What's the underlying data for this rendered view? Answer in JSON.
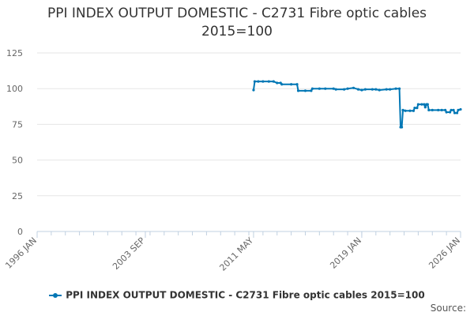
{
  "chart_data": {
    "type": "line",
    "title": [
      "PPI INDEX OUTPUT DOMESTIC - C2731 Fibre optic cables",
      "2015=100"
    ],
    "xlabel": "",
    "ylabel": "",
    "xlim": [
      "1996-01",
      "2026-01"
    ],
    "ylim": [
      0,
      125
    ],
    "x_ticks": [
      {
        "date": "1996-01",
        "label": "1996 JAN"
      },
      {
        "date": "2003-09",
        "label": "2003 SEP"
      },
      {
        "date": "2011-05",
        "label": "2011 MAY"
      },
      {
        "date": "2019-01",
        "label": "2019 JAN"
      },
      {
        "date": "2026-01",
        "label": "2026 JAN"
      }
    ],
    "y_ticks": [
      0,
      25,
      50,
      75,
      100,
      125
    ],
    "grid": "horizontal",
    "legend_position": "bottom-center",
    "color": "#0077b5",
    "series": [
      {
        "name": "PPI INDEX OUTPUT DOMESTIC - C2731 Fibre optic cables 2015=100",
        "points": [
          [
            "2011-05",
            99
          ],
          [
            "2011-06",
            105
          ],
          [
            "2011-09",
            105
          ],
          [
            "2012-01",
            105
          ],
          [
            "2012-06",
            105
          ],
          [
            "2012-10",
            105
          ],
          [
            "2013-01",
            104
          ],
          [
            "2013-04",
            104
          ],
          [
            "2013-05",
            103
          ],
          [
            "2014-01",
            103
          ],
          [
            "2014-06",
            103
          ],
          [
            "2014-07",
            98.5
          ],
          [
            "2015-01",
            98.5
          ],
          [
            "2015-06",
            98.5
          ],
          [
            "2015-07",
            100
          ],
          [
            "2016-01",
            100
          ],
          [
            "2016-06",
            100
          ],
          [
            "2017-01",
            100
          ],
          [
            "2017-03",
            99.5
          ],
          [
            "2017-10",
            99.5
          ],
          [
            "2018-01",
            100
          ],
          [
            "2018-06",
            100.5
          ],
          [
            "2018-10",
            99.5
          ],
          [
            "2019-01",
            99
          ],
          [
            "2019-04",
            99.5
          ],
          [
            "2019-10",
            99.5
          ],
          [
            "2020-01",
            99.5
          ],
          [
            "2020-04",
            99
          ],
          [
            "2020-10",
            99.5
          ],
          [
            "2021-01",
            99.5
          ],
          [
            "2021-06",
            100
          ],
          [
            "2021-09",
            100
          ],
          [
            "2021-10",
            73
          ],
          [
            "2021-11",
            73
          ],
          [
            "2021-12",
            85
          ],
          [
            "2022-02",
            84.5
          ],
          [
            "2022-06",
            84.5
          ],
          [
            "2022-09",
            84.5
          ],
          [
            "2022-10",
            86.5
          ],
          [
            "2022-12",
            86.5
          ],
          [
            "2023-01",
            89
          ],
          [
            "2023-04",
            89
          ],
          [
            "2023-06",
            89
          ],
          [
            "2023-07",
            87
          ],
          [
            "2023-08",
            89
          ],
          [
            "2023-09",
            89
          ],
          [
            "2023-10",
            85
          ],
          [
            "2024-01",
            85
          ],
          [
            "2024-06",
            85
          ],
          [
            "2024-09",
            85
          ],
          [
            "2024-12",
            85
          ],
          [
            "2025-01",
            83.5
          ],
          [
            "2025-04",
            83.5
          ],
          [
            "2025-05",
            85
          ],
          [
            "2025-07",
            85
          ],
          [
            "2025-08",
            83
          ],
          [
            "2025-10",
            83
          ],
          [
            "2025-11",
            85
          ],
          [
            "2026-01",
            85.5
          ]
        ]
      }
    ],
    "source_label": "Source:"
  }
}
